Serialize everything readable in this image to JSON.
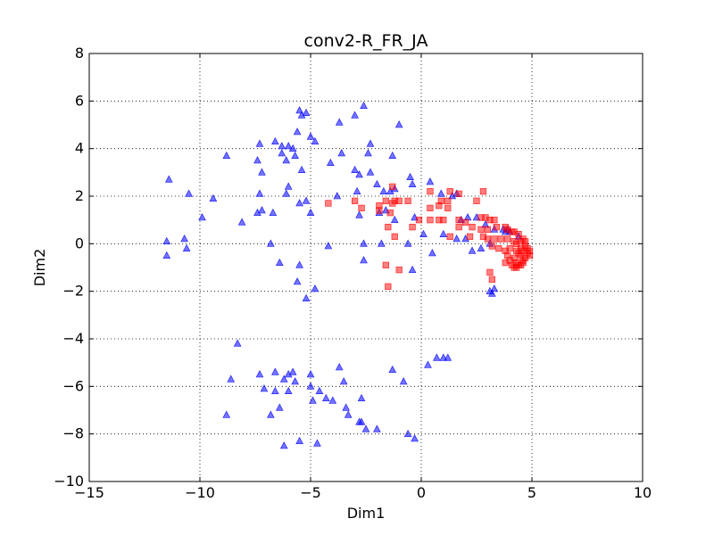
{
  "chart_data": {
    "type": "scatter",
    "title": "conv2-R_FR_JA",
    "xlabel": "Dim1",
    "ylabel": "Dim2",
    "xlim": [
      -15,
      10
    ],
    "ylim": [
      -10,
      8
    ],
    "xticks": [
      -15,
      -10,
      -5,
      0,
      5,
      10
    ],
    "yticks": [
      -10,
      -8,
      -6,
      -4,
      -2,
      0,
      2,
      4,
      6,
      8
    ],
    "grid": true,
    "series": [
      {
        "marker": "triangle",
        "color": "#0000ff",
        "points": [
          [
            -5.5,
            5.6
          ],
          [
            -5.4,
            5.4
          ],
          [
            -5.2,
            5.5
          ],
          [
            -3.7,
            5.1
          ],
          [
            -2.6,
            5.8
          ],
          [
            -3.0,
            5.4
          ],
          [
            -1.0,
            5.0
          ],
          [
            -5.0,
            4.5
          ],
          [
            -5.6,
            4.7
          ],
          [
            -6.6,
            4.3
          ],
          [
            -7.3,
            4.2
          ],
          [
            -6.3,
            4.1
          ],
          [
            -6.0,
            4.1
          ],
          [
            -5.8,
            4.0
          ],
          [
            -4.8,
            4.3
          ],
          [
            -2.3,
            4.2
          ],
          [
            -8.8,
            3.7
          ],
          [
            -7.4,
            3.5
          ],
          [
            -6.3,
            3.8
          ],
          [
            -5.7,
            3.7
          ],
          [
            -6.1,
            3.5
          ],
          [
            -3.6,
            3.8
          ],
          [
            -1.3,
            3.7
          ],
          [
            -2.4,
            3.8
          ],
          [
            -7.2,
            3.0
          ],
          [
            -5.4,
            3.1
          ],
          [
            -4.1,
            3.4
          ],
          [
            -3.0,
            3.1
          ],
          [
            -2.8,
            2.9
          ],
          [
            -2.3,
            3.0
          ],
          [
            -11.4,
            2.7
          ],
          [
            -10.5,
            2.1
          ],
          [
            -9.4,
            1.9
          ],
          [
            -7.3,
            2.1
          ],
          [
            -6.1,
            2.1
          ],
          [
            -6.0,
            2.4
          ],
          [
            -5.5,
            1.7
          ],
          [
            -5.2,
            1.8
          ],
          [
            -3.8,
            2.0
          ],
          [
            -2.9,
            2.2
          ],
          [
            -2.0,
            2.5
          ],
          [
            -1.7,
            2.2
          ],
          [
            -1.4,
            2.2
          ],
          [
            -1.2,
            2.3
          ],
          [
            -0.5,
            2.8
          ],
          [
            -0.4,
            2.5
          ],
          [
            0.4,
            2.6
          ],
          [
            0.9,
            2.1
          ],
          [
            1.4,
            2.0
          ],
          [
            1.6,
            2.1
          ],
          [
            -9.9,
            1.1
          ],
          [
            -8.1,
            0.9
          ],
          [
            -7.4,
            1.3
          ],
          [
            -7.2,
            1.4
          ],
          [
            -6.7,
            1.3
          ],
          [
            -5.0,
            1.3
          ],
          [
            -2.8,
            1.2
          ],
          [
            -1.9,
            1.3
          ],
          [
            -1.6,
            1.4
          ],
          [
            -1.2,
            1.0
          ],
          [
            -0.3,
            1.1
          ],
          [
            1.8,
            1.0
          ],
          [
            2.1,
            1.1
          ],
          [
            2.5,
            1.1
          ],
          [
            2.9,
            0.8
          ],
          [
            3.3,
            0.6
          ],
          [
            3.7,
            0.6
          ],
          [
            3.8,
            0.5
          ],
          [
            3.9,
            0.6
          ],
          [
            4.0,
            0.5
          ],
          [
            4.4,
            0.3
          ],
          [
            -11.5,
            0.1
          ],
          [
            -10.7,
            0.2
          ],
          [
            -10.6,
            -0.2
          ],
          [
            -6.8,
            0.0
          ],
          [
            -4.2,
            -0.1
          ],
          [
            -2.6,
            0.0
          ],
          [
            -1.8,
            0.0
          ],
          [
            -0.6,
            0.0
          ],
          [
            0.1,
            0.4
          ],
          [
            1.0,
            0.4
          ],
          [
            1.6,
            0.2
          ],
          [
            2.0,
            0.2
          ],
          [
            3.1,
            0.0
          ],
          [
            -11.5,
            -0.5
          ],
          [
            -6.4,
            -0.8
          ],
          [
            -5.5,
            -0.9
          ],
          [
            -2.6,
            -0.7
          ],
          [
            0.5,
            -0.4
          ],
          [
            2.3,
            -0.3
          ],
          [
            2.7,
            -0.2
          ],
          [
            -5.6,
            -1.6
          ],
          [
            -0.4,
            -1.1
          ],
          [
            3.1,
            -2.0
          ],
          [
            3.2,
            -2.1
          ],
          [
            3.3,
            -1.9
          ],
          [
            -4.8,
            -1.9
          ],
          [
            -5.2,
            -2.3
          ],
          [
            -8.3,
            -4.2
          ],
          [
            -3.7,
            -5.2
          ],
          [
            -1.3,
            -5.3
          ],
          [
            0.3,
            -5.1
          ],
          [
            0.7,
            -4.8
          ],
          [
            1.0,
            -4.8
          ],
          [
            1.2,
            -4.8
          ],
          [
            -8.6,
            -5.7
          ],
          [
            -7.3,
            -5.5
          ],
          [
            -6.6,
            -5.4
          ],
          [
            -5.8,
            -5.4
          ],
          [
            -6.0,
            -5.5
          ],
          [
            -5.0,
            -5.5
          ],
          [
            -6.2,
            -5.7
          ],
          [
            -5.7,
            -5.8
          ],
          [
            -3.5,
            -5.8
          ],
          [
            -5.0,
            -6.0
          ],
          [
            -0.8,
            -5.8
          ],
          [
            -7.1,
            -6.1
          ],
          [
            -6.6,
            -6.2
          ],
          [
            -6.0,
            -6.2
          ],
          [
            -4.6,
            -6.2
          ],
          [
            -4.3,
            -6.5
          ],
          [
            -2.7,
            -6.5
          ],
          [
            -4.9,
            -6.6
          ],
          [
            -4.0,
            -6.6
          ],
          [
            -6.4,
            -6.9
          ],
          [
            -3.4,
            -6.9
          ],
          [
            -6.8,
            -7.2
          ],
          [
            -8.8,
            -7.2
          ],
          [
            -3.3,
            -7.2
          ],
          [
            -2.8,
            -7.5
          ],
          [
            -2.7,
            -7.5
          ],
          [
            -2.5,
            -7.8
          ],
          [
            -2.0,
            -7.8
          ],
          [
            -0.6,
            -8.0
          ],
          [
            -0.3,
            -8.2
          ],
          [
            -6.2,
            -8.5
          ],
          [
            -5.5,
            -8.3
          ],
          [
            -4.7,
            -8.4
          ]
        ]
      },
      {
        "marker": "square",
        "color": "#ff0000",
        "points": [
          [
            -1.3,
            2.4
          ],
          [
            0.4,
            2.2
          ],
          [
            1.3,
            2.2
          ],
          [
            1.7,
            2.1
          ],
          [
            2.8,
            2.2
          ],
          [
            -3.0,
            1.8
          ],
          [
            -1.6,
            1.8
          ],
          [
            -1.2,
            1.8
          ],
          [
            -1.3,
            1.7
          ],
          [
            -1.0,
            1.8
          ],
          [
            -0.6,
            1.8
          ],
          [
            0.9,
            1.8
          ],
          [
            1.2,
            1.8
          ],
          [
            2.5,
            1.8
          ],
          [
            -4.2,
            1.7
          ],
          [
            -2.7,
            1.5
          ],
          [
            -1.9,
            1.6
          ],
          [
            0.4,
            1.5
          ],
          [
            0.8,
            1.6
          ],
          [
            1.2,
            1.5
          ],
          [
            -1.9,
            1.4
          ],
          [
            -1.4,
            1.3
          ],
          [
            -0.1,
            1.0
          ],
          [
            0.4,
            1.0
          ],
          [
            0.8,
            1.0
          ],
          [
            1.0,
            1.0
          ],
          [
            1.7,
            1.0
          ],
          [
            2.0,
            0.9
          ],
          [
            2.7,
            1.1
          ],
          [
            2.9,
            1.1
          ],
          [
            3.1,
            1.0
          ],
          [
            3.3,
            1.0
          ],
          [
            -1.5,
            0.7
          ],
          [
            -0.4,
            0.7
          ],
          [
            1.7,
            0.7
          ],
          [
            2.3,
            0.7
          ],
          [
            2.7,
            0.6
          ],
          [
            3.0,
            0.6
          ],
          [
            3.4,
            0.7
          ],
          [
            3.8,
            0.7
          ],
          [
            3.9,
            0.6
          ],
          [
            4.1,
            0.5
          ],
          [
            4.2,
            0.5
          ],
          [
            4.4,
            0.4
          ],
          [
            -1.2,
            0.3
          ],
          [
            1.3,
            0.3
          ],
          [
            2.2,
            0.3
          ],
          [
            2.8,
            0.3
          ],
          [
            3.0,
            0.2
          ],
          [
            3.3,
            0.2
          ],
          [
            3.6,
            0.2
          ],
          [
            3.9,
            0.2
          ],
          [
            4.2,
            0.1
          ],
          [
            4.3,
            0.0
          ],
          [
            4.5,
            0.1
          ],
          [
            4.6,
            0.2
          ],
          [
            4.7,
            0.1
          ],
          [
            3.2,
            -0.1
          ],
          [
            3.5,
            -0.2
          ],
          [
            3.8,
            -0.3
          ],
          [
            4.0,
            -0.2
          ],
          [
            4.3,
            -0.3
          ],
          [
            4.5,
            -0.2
          ],
          [
            4.7,
            -0.1
          ],
          [
            4.8,
            -0.2
          ],
          [
            4.9,
            -0.3
          ],
          [
            4.6,
            -0.3
          ],
          [
            4.8,
            -0.4
          ],
          [
            4.4,
            -0.4
          ],
          [
            3.9,
            -0.5
          ],
          [
            4.2,
            -0.6
          ],
          [
            4.5,
            -0.5
          ],
          [
            4.7,
            -0.6
          ],
          [
            4.9,
            -0.5
          ],
          [
            4.0,
            -0.7
          ],
          [
            4.3,
            -0.8
          ],
          [
            4.6,
            -0.8
          ],
          [
            3.8,
            -0.8
          ],
          [
            4.1,
            -0.9
          ],
          [
            4.3,
            -1.0
          ],
          [
            4.5,
            -0.9
          ],
          [
            4.2,
            -1.0
          ],
          [
            4.4,
            -0.9
          ],
          [
            4.6,
            -0.7
          ],
          [
            -1.6,
            -0.9
          ],
          [
            -1.0,
            -1.1
          ],
          [
            3.1,
            -1.2
          ],
          [
            3.2,
            -1.5
          ],
          [
            -1.5,
            -1.8
          ]
        ]
      }
    ]
  }
}
